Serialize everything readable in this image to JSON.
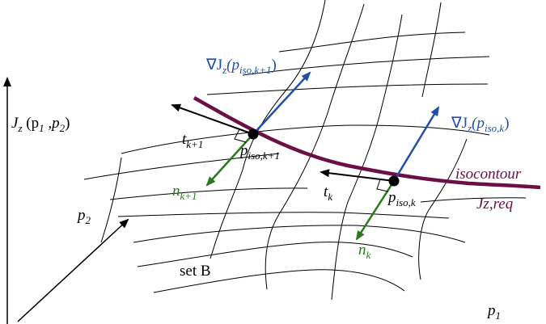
{
  "colors": {
    "black": "#000000",
    "blue": "#1f4fa8",
    "green": "#2a7a1e",
    "isocontour": "#6b0f45",
    "grid": "#000000"
  },
  "labels": {
    "vertical_axis_main": "J",
    "vertical_axis_sub": "z",
    "vertical_axis_args_open": " (p",
    "vertical_axis_args_sub1": "1",
    "vertical_axis_args_mid": " ,p",
    "vertical_axis_args_sub2": "2",
    "vertical_axis_args_close": ")",
    "p2_main": "p",
    "p2_sub": "2",
    "p1_main": "p",
    "p1_sub": "1",
    "set_b": "set B",
    "isocontour": "isocontour",
    "jzreq": "Jz,req",
    "grad_k1_nabla": "∇J",
    "grad_k1_sub": "z",
    "grad_k1_args": "(p",
    "grad_k1_args_sub": "iso,k+1",
    "grad_k1_close": ")",
    "grad_k_nabla": "∇J",
    "grad_k_sub": "z",
    "grad_k_args": "(p",
    "grad_k_args_sub": "iso,k",
    "grad_k_close": ")",
    "t_k1_main": "t",
    "t_k1_sub": "k+1",
    "t_k_main": "t",
    "t_k_sub": "k",
    "n_k1_main": "n",
    "n_k1_sub": "k+1",
    "n_k_main": "n",
    "n_k_sub": "k",
    "piso_k1_main": "p",
    "piso_k1_sub": "iso,k+1",
    "piso_k_main": "p",
    "piso_k_sub": "iso,k"
  }
}
